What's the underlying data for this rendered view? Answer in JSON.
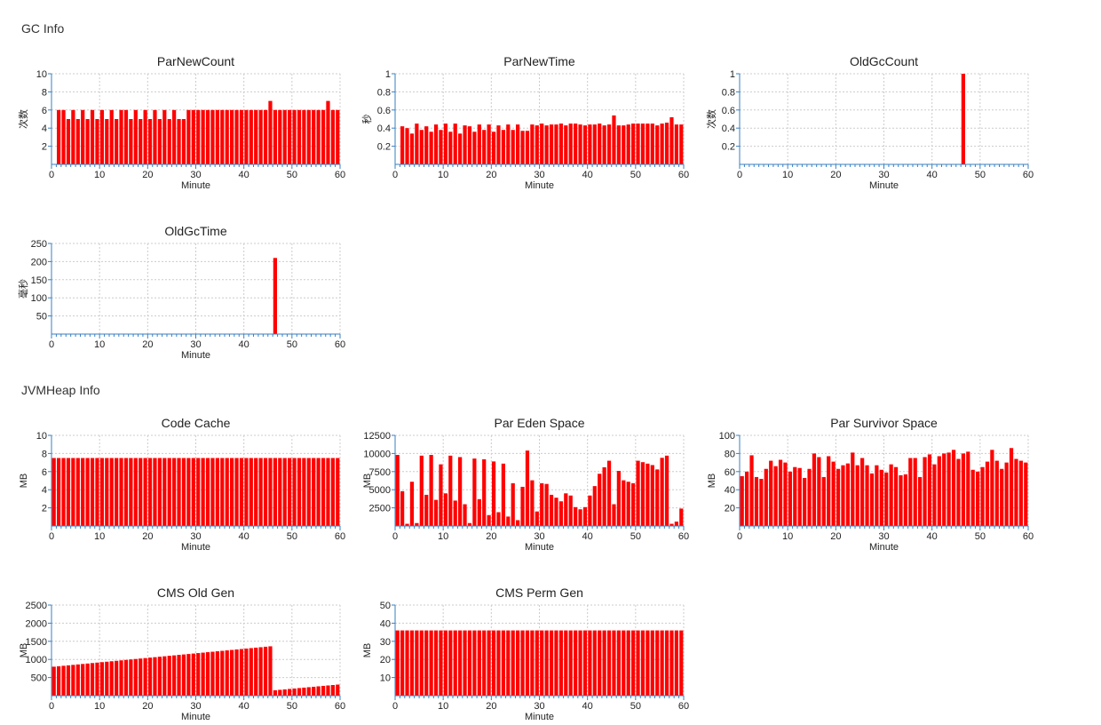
{
  "sections": [
    {
      "title": "GC Info"
    },
    {
      "title": "JVMHeap Info"
    }
  ],
  "colors": {
    "bar": "#ff0000",
    "axis": "#3a7fc1",
    "grid": "#cccccc"
  },
  "chart_data": [
    {
      "type": "bar",
      "title": "ParNewCount",
      "xlabel": "Minute",
      "ylabel": "次数",
      "ylim": [
        0,
        10
      ],
      "xlim": [
        0,
        60
      ],
      "yticks": [
        2,
        4,
        6,
        8,
        10
      ],
      "xticks": [
        0,
        10,
        20,
        30,
        40,
        50,
        60
      ],
      "grid": true,
      "x": [
        1,
        2,
        3,
        4,
        5,
        6,
        7,
        8,
        9,
        10,
        11,
        12,
        13,
        14,
        15,
        16,
        17,
        18,
        19,
        20,
        21,
        22,
        23,
        24,
        25,
        26,
        27,
        28,
        29,
        30,
        31,
        32,
        33,
        34,
        35,
        36,
        37,
        38,
        39,
        40,
        41,
        42,
        43,
        44,
        45,
        46,
        47,
        48,
        49,
        50,
        51,
        52,
        53,
        54,
        55,
        56,
        57,
        58,
        59
      ],
      "values": [
        6,
        6,
        5,
        6,
        5,
        6,
        5,
        6,
        5,
        6,
        5,
        6,
        5,
        6,
        6,
        5,
        6,
        5,
        6,
        5,
        6,
        5,
        6,
        5,
        6,
        5,
        5,
        6,
        6,
        6,
        6,
        6,
        6,
        6,
        6,
        6,
        6,
        6,
        6,
        6,
        6,
        6,
        6,
        6,
        7,
        6,
        6,
        6,
        6,
        6,
        6,
        6,
        6,
        6,
        6,
        6,
        7,
        6,
        6
      ]
    },
    {
      "type": "bar",
      "title": "ParNewTime",
      "xlabel": "Minute",
      "ylabel": "秒",
      "ylim": [
        0,
        1
      ],
      "xlim": [
        0,
        60
      ],
      "yticks": [
        0.2,
        0.4,
        0.6,
        0.8,
        1
      ],
      "xticks": [
        0,
        10,
        20,
        30,
        40,
        50,
        60
      ],
      "grid": true,
      "x": [
        1,
        2,
        3,
        4,
        5,
        6,
        7,
        8,
        9,
        10,
        11,
        12,
        13,
        14,
        15,
        16,
        17,
        18,
        19,
        20,
        21,
        22,
        23,
        24,
        25,
        26,
        27,
        28,
        29,
        30,
        31,
        32,
        33,
        34,
        35,
        36,
        37,
        38,
        39,
        40,
        41,
        42,
        43,
        44,
        45,
        46,
        47,
        48,
        49,
        50,
        51,
        52,
        53,
        54,
        55,
        56,
        57,
        58,
        59
      ],
      "values": [
        0.42,
        0.4,
        0.34,
        0.45,
        0.38,
        0.42,
        0.36,
        0.44,
        0.38,
        0.45,
        0.36,
        0.45,
        0.34,
        0.43,
        0.42,
        0.36,
        0.44,
        0.38,
        0.44,
        0.36,
        0.43,
        0.38,
        0.44,
        0.38,
        0.44,
        0.37,
        0.37,
        0.44,
        0.43,
        0.45,
        0.43,
        0.44,
        0.44,
        0.45,
        0.43,
        0.45,
        0.45,
        0.44,
        0.43,
        0.44,
        0.44,
        0.45,
        0.43,
        0.44,
        0.54,
        0.43,
        0.43,
        0.44,
        0.45,
        0.45,
        0.45,
        0.45,
        0.45,
        0.43,
        0.45,
        0.46,
        0.52,
        0.44,
        0.44
      ]
    },
    {
      "type": "bar",
      "title": "OldGcCount",
      "xlabel": "Minute",
      "ylabel": "次数",
      "ylim": [
        0,
        1
      ],
      "xlim": [
        0,
        60
      ],
      "yticks": [
        0.2,
        0.4,
        0.6,
        0.8,
        1
      ],
      "xticks": [
        0,
        10,
        20,
        30,
        40,
        50,
        60
      ],
      "grid": true,
      "x": [
        46
      ],
      "values": [
        1
      ]
    },
    {
      "type": "bar",
      "title": "OldGcTime",
      "xlabel": "Minute",
      "ylabel": "毫秒",
      "ylim": [
        0,
        250
      ],
      "xlim": [
        0,
        60
      ],
      "yticks": [
        50,
        100,
        150,
        200,
        250
      ],
      "xticks": [
        0,
        10,
        20,
        30,
        40,
        50,
        60
      ],
      "grid": true,
      "x": [
        46
      ],
      "values": [
        210
      ]
    },
    {
      "type": "bar",
      "title": "Code Cache",
      "xlabel": "Minute",
      "ylabel": "MB",
      "ylim": [
        0,
        10
      ],
      "xlim": [
        0,
        60
      ],
      "yticks": [
        2,
        4,
        6,
        8,
        10
      ],
      "xticks": [
        0,
        10,
        20,
        30,
        40,
        50,
        60
      ],
      "grid": true,
      "x": [
        0,
        1,
        2,
        3,
        4,
        5,
        6,
        7,
        8,
        9,
        10,
        11,
        12,
        13,
        14,
        15,
        16,
        17,
        18,
        19,
        20,
        21,
        22,
        23,
        24,
        25,
        26,
        27,
        28,
        29,
        30,
        31,
        32,
        33,
        34,
        35,
        36,
        37,
        38,
        39,
        40,
        41,
        42,
        43,
        44,
        45,
        46,
        47,
        48,
        49,
        50,
        51,
        52,
        53,
        54,
        55,
        56,
        57,
        58,
        59
      ],
      "values": [
        7.5,
        7.5,
        7.5,
        7.5,
        7.5,
        7.5,
        7.5,
        7.5,
        7.5,
        7.5,
        7.5,
        7.5,
        7.5,
        7.5,
        7.5,
        7.5,
        7.5,
        7.5,
        7.5,
        7.5,
        7.5,
        7.5,
        7.5,
        7.5,
        7.5,
        7.5,
        7.5,
        7.5,
        7.5,
        7.5,
        7.5,
        7.5,
        7.5,
        7.5,
        7.5,
        7.5,
        7.5,
        7.5,
        7.5,
        7.5,
        7.5,
        7.5,
        7.5,
        7.5,
        7.5,
        7.5,
        7.5,
        7.5,
        7.5,
        7.5,
        7.5,
        7.5,
        7.5,
        7.5,
        7.5,
        7.5,
        7.5,
        7.5,
        7.5,
        7.5
      ]
    },
    {
      "type": "bar",
      "title": "Par Eden Space",
      "xlabel": "Minute",
      "ylabel": "MB",
      "ylim": [
        0,
        12500
      ],
      "xlim": [
        0,
        60
      ],
      "yticks": [
        2500,
        5000,
        7500,
        10000,
        12500
      ],
      "xticks": [
        0,
        10,
        20,
        30,
        40,
        50,
        60
      ],
      "grid": true,
      "x": [
        0,
        1,
        2,
        3,
        4,
        5,
        6,
        7,
        8,
        9,
        10,
        11,
        12,
        13,
        14,
        15,
        16,
        17,
        18,
        19,
        20,
        21,
        22,
        23,
        24,
        25,
        26,
        27,
        28,
        29,
        30,
        31,
        32,
        33,
        34,
        35,
        36,
        37,
        38,
        39,
        40,
        41,
        42,
        43,
        44,
        45,
        46,
        47,
        48,
        49,
        50,
        51,
        52,
        53,
        54,
        55,
        56,
        57,
        58,
        59
      ],
      "values": [
        9800,
        4800,
        300,
        6100,
        400,
        9700,
        4300,
        9800,
        3600,
        8500,
        4500,
        9700,
        3500,
        9500,
        3000,
        400,
        9300,
        3700,
        9200,
        1500,
        8900,
        1900,
        8600,
        1300,
        5900,
        800,
        5400,
        10400,
        6300,
        2000,
        5900,
        5800,
        4300,
        3900,
        3400,
        4500,
        4200,
        2600,
        2300,
        2600,
        4200,
        5500,
        7200,
        8100,
        9000,
        3000,
        7600,
        6300,
        6100,
        5900,
        9000,
        8800,
        8600,
        8400,
        7800,
        9400,
        9700,
        300,
        600,
        2400
      ]
    },
    {
      "type": "bar",
      "title": "Par Survivor Space",
      "xlabel": "Minute",
      "ylabel": "MB",
      "ylim": [
        0,
        100
      ],
      "xlim": [
        0,
        60
      ],
      "yticks": [
        20,
        40,
        60,
        80,
        100
      ],
      "xticks": [
        0,
        10,
        20,
        30,
        40,
        50,
        60
      ],
      "grid": true,
      "x": [
        0,
        1,
        2,
        3,
        4,
        5,
        6,
        7,
        8,
        9,
        10,
        11,
        12,
        13,
        14,
        15,
        16,
        17,
        18,
        19,
        20,
        21,
        22,
        23,
        24,
        25,
        26,
        27,
        28,
        29,
        30,
        31,
        32,
        33,
        34,
        35,
        36,
        37,
        38,
        39,
        40,
        41,
        42,
        43,
        44,
        45,
        46,
        47,
        48,
        49,
        50,
        51,
        52,
        53,
        54,
        55,
        56,
        57,
        58,
        59
      ],
      "values": [
        55,
        60,
        78,
        54,
        52,
        63,
        72,
        66,
        73,
        70,
        60,
        65,
        64,
        53,
        63,
        80,
        76,
        54,
        77,
        71,
        63,
        67,
        69,
        81,
        67,
        75,
        67,
        58,
        67,
        62,
        59,
        68,
        65,
        56,
        57,
        75,
        75,
        54,
        76,
        79,
        68,
        77,
        80,
        81,
        84,
        74,
        80,
        82,
        62,
        60,
        65,
        71,
        84,
        72,
        63,
        70,
        86,
        74,
        72,
        70
      ]
    },
    {
      "type": "bar",
      "title": "CMS Old Gen",
      "xlabel": "Minute",
      "ylabel": "MB",
      "ylim": [
        0,
        2500
      ],
      "xlim": [
        0,
        60
      ],
      "yticks": [
        500,
        1000,
        1500,
        2000,
        2500
      ],
      "xticks": [
        0,
        10,
        20,
        30,
        40,
        50,
        60
      ],
      "grid": true,
      "x": [
        0,
        1,
        2,
        3,
        4,
        5,
        6,
        7,
        8,
        9,
        10,
        11,
        12,
        13,
        14,
        15,
        16,
        17,
        18,
        19,
        20,
        21,
        22,
        23,
        24,
        25,
        26,
        27,
        28,
        29,
        30,
        31,
        32,
        33,
        34,
        35,
        36,
        37,
        38,
        39,
        40,
        41,
        42,
        43,
        44,
        45,
        46,
        47,
        48,
        49,
        50,
        51,
        52,
        53,
        54,
        55,
        56,
        57,
        58,
        59
      ],
      "values": [
        800,
        812,
        825,
        837,
        850,
        862,
        875,
        887,
        900,
        912,
        925,
        937,
        950,
        962,
        975,
        987,
        1000,
        1012,
        1025,
        1037,
        1050,
        1062,
        1075,
        1087,
        1100,
        1112,
        1125,
        1137,
        1150,
        1162,
        1175,
        1187,
        1200,
        1212,
        1225,
        1237,
        1250,
        1262,
        1275,
        1287,
        1300,
        1312,
        1325,
        1337,
        1350,
        1362,
        150,
        162,
        174,
        186,
        198,
        210,
        222,
        234,
        246,
        258,
        270,
        282,
        294,
        306
      ]
    },
    {
      "type": "bar",
      "title": "CMS Perm Gen",
      "xlabel": "Minute",
      "ylabel": "MB",
      "ylim": [
        0,
        50
      ],
      "xlim": [
        0,
        60
      ],
      "yticks": [
        10,
        20,
        30,
        40,
        50
      ],
      "xticks": [
        0,
        10,
        20,
        30,
        40,
        50,
        60
      ],
      "grid": true,
      "x": [
        0,
        1,
        2,
        3,
        4,
        5,
        6,
        7,
        8,
        9,
        10,
        11,
        12,
        13,
        14,
        15,
        16,
        17,
        18,
        19,
        20,
        21,
        22,
        23,
        24,
        25,
        26,
        27,
        28,
        29,
        30,
        31,
        32,
        33,
        34,
        35,
        36,
        37,
        38,
        39,
        40,
        41,
        42,
        43,
        44,
        45,
        46,
        47,
        48,
        49,
        50,
        51,
        52,
        53,
        54,
        55,
        56,
        57,
        58,
        59
      ],
      "values": [
        36,
        36,
        36,
        36,
        36,
        36,
        36,
        36,
        36,
        36,
        36,
        36,
        36,
        36,
        36,
        36,
        36,
        36,
        36,
        36,
        36,
        36,
        36,
        36,
        36,
        36,
        36,
        36,
        36,
        36,
        36,
        36,
        36,
        36,
        36,
        36,
        36,
        36,
        36,
        36,
        36,
        36,
        36,
        36,
        36,
        36,
        36,
        36,
        36,
        36,
        36,
        36,
        36,
        36,
        36,
        36,
        36,
        36,
        36,
        36
      ]
    }
  ]
}
